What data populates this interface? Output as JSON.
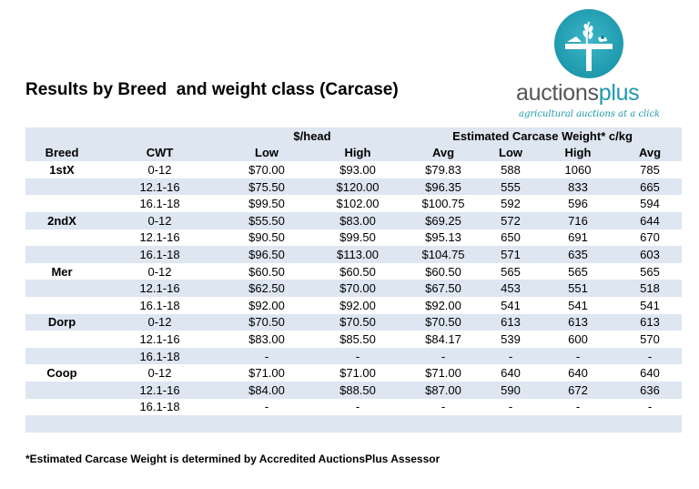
{
  "title": "Results by Breed  and weight class (Carcase)",
  "logo": {
    "brand_main": "auctions",
    "brand_accent": "plus",
    "tagline": "agricultural auctions at a click",
    "colors": {
      "accent": "#1e99ad",
      "text": "#555555"
    }
  },
  "table": {
    "group_headers": {
      "per_head": "$/head",
      "carcase": "Estimated Carcase Weight* c/kg"
    },
    "columns": [
      "Breed",
      "CWT",
      "Low",
      "High",
      "Avg",
      "Low",
      "High",
      "Avg"
    ],
    "rows": [
      [
        "1stX",
        "0-12",
        "$70.00",
        "$93.00",
        "$79.83",
        "588",
        "1060",
        "785"
      ],
      [
        "",
        "12.1-16",
        "$75.50",
        "$120.00",
        "$96.35",
        "555",
        "833",
        "665"
      ],
      [
        "",
        "16.1-18",
        "$99.50",
        "$102.00",
        "$100.75",
        "592",
        "596",
        "594"
      ],
      [
        "2ndX",
        "0-12",
        "$55.50",
        "$83.00",
        "$69.25",
        "572",
        "716",
        "644"
      ],
      [
        "",
        "12.1-16",
        "$90.50",
        "$99.50",
        "$95.13",
        "650",
        "691",
        "670"
      ],
      [
        "",
        "16.1-18",
        "$96.50",
        "$113.00",
        "$104.75",
        "571",
        "635",
        "603"
      ],
      [
        "Mer",
        "0-12",
        "$60.50",
        "$60.50",
        "$60.50",
        "565",
        "565",
        "565"
      ],
      [
        "",
        "12.1-16",
        "$62.50",
        "$70.00",
        "$67.50",
        "453",
        "551",
        "518"
      ],
      [
        "",
        "16.1-18",
        "$92.00",
        "$92.00",
        "$92.00",
        "541",
        "541",
        "541"
      ],
      [
        "Dorp",
        "0-12",
        "$70.50",
        "$70.50",
        "$70.50",
        "613",
        "613",
        "613"
      ],
      [
        "",
        "12.1-16",
        "$83.00",
        "$85.50",
        "$84.17",
        "539",
        "600",
        "570"
      ],
      [
        "",
        "16.1-18",
        "-",
        "-",
        "-",
        "-",
        "-",
        "-"
      ],
      [
        "Coop",
        "0-12",
        "$71.00",
        "$71.00",
        "$71.00",
        "640",
        "640",
        "640"
      ],
      [
        "",
        "12.1-16",
        "$84.00",
        "$88.50",
        "$87.00",
        "590",
        "672",
        "636"
      ],
      [
        "",
        "16.1-18",
        "-",
        "-",
        "-",
        "-",
        "-",
        "-"
      ],
      [
        "",
        "",
        "",
        "",
        "",
        "",
        "",
        ""
      ]
    ],
    "colors": {
      "band": "#dde6f1"
    }
  },
  "footnote": "*Estimated Carcase Weight is determined by Accredited AuctionsPlus Assessor"
}
